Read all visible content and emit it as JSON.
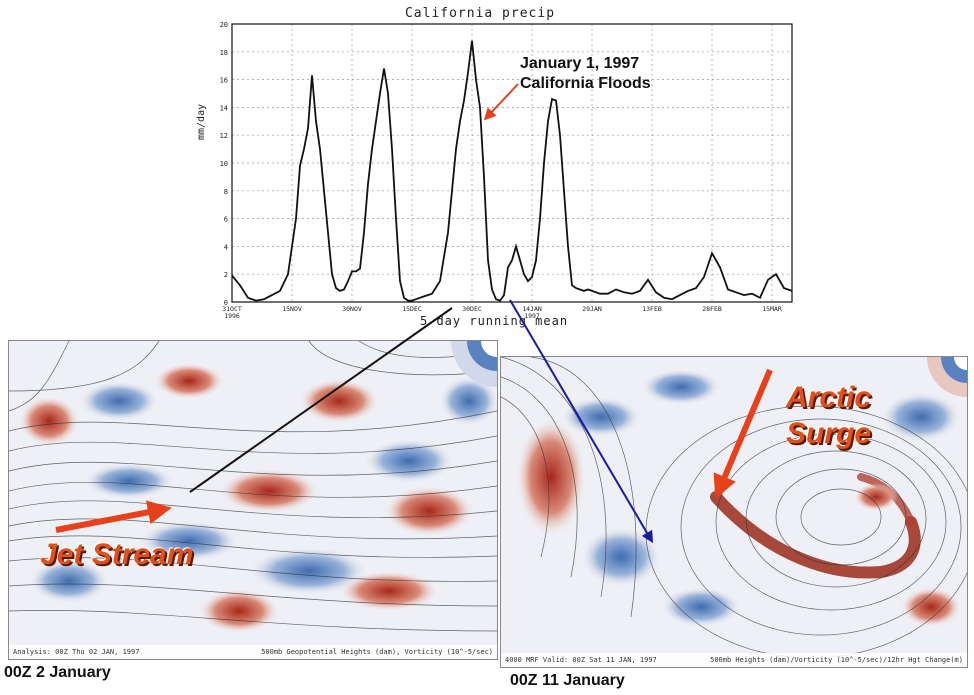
{
  "chart_data": {
    "type": "line",
    "title": "California precip",
    "ylabel": "mm/day",
    "xlabel": "5 day running mean",
    "ylim": [
      0,
      20
    ],
    "y_ticks": [
      "0",
      "2",
      "4",
      "6",
      "8",
      "10",
      "12",
      "14",
      "16",
      "18",
      "20"
    ],
    "x_ticks": [
      "31OCT 1996",
      "15NOV",
      "30NOV",
      "15DEC",
      "30DEC",
      "14JAN 1997",
      "29JAN",
      "13FEB",
      "28FEB",
      "15MAR"
    ],
    "x_tick_days": [
      0,
      15,
      30,
      45,
      60,
      75,
      90,
      105,
      120,
      135
    ],
    "x_range": [
      0,
      140
    ],
    "series": [
      {
        "x": [
          0,
          2,
          4,
          6,
          8,
          10,
          12,
          14,
          16,
          17,
          18,
          19,
          20,
          21,
          22,
          23,
          24,
          25,
          26,
          27,
          28,
          29,
          30,
          31,
          32,
          33,
          34,
          35,
          36,
          37,
          38,
          39,
          40,
          41,
          42,
          43,
          44,
          45,
          46,
          48,
          50,
          52,
          54,
          55,
          56,
          57,
          58,
          59,
          60,
          61,
          62,
          63,
          64,
          65,
          66,
          67,
          68,
          69,
          70,
          71,
          72,
          73,
          74,
          75,
          76,
          77,
          78,
          79,
          80,
          81,
          82,
          83,
          84,
          85,
          86,
          87,
          88,
          89,
          90,
          92,
          94,
          96,
          98,
          100,
          102,
          104,
          106,
          108,
          110,
          112,
          114,
          116,
          118,
          120,
          122,
          124,
          126,
          128,
          130,
          132,
          134,
          136,
          138,
          140
        ],
        "y": [
          1.9,
          1.2,
          0.3,
          0.1,
          0.2,
          0.5,
          0.8,
          2,
          6,
          9.8,
          11,
          12.5,
          16.3,
          13,
          11,
          8,
          5,
          2,
          1,
          0.8,
          0.9,
          1.5,
          2.2,
          2.2,
          2.4,
          5,
          8.5,
          11,
          13,
          15,
          16.8,
          15,
          11,
          6,
          1.5,
          0.3,
          0.1,
          0.1,
          0.2,
          0.4,
          0.6,
          1.5,
          5,
          8,
          11,
          13,
          14.5,
          16.5,
          18.8,
          16,
          14,
          9,
          3,
          0.9,
          0.2,
          0.1,
          0.5,
          2.5,
          3,
          4,
          3,
          2,
          1.5,
          1.8,
          3,
          6,
          10,
          13,
          14.6,
          14.5,
          12,
          8,
          4,
          1.2,
          1,
          0.9,
          0.8,
          0.9,
          0.8,
          0.6,
          0.6,
          0.9,
          0.7,
          0.6,
          0.8,
          1.6,
          0.7,
          0.3,
          0.2,
          0.5,
          0.8,
          1,
          1.8,
          3.5,
          2.5,
          0.9,
          0.7,
          0.5,
          0.6,
          0.3,
          1.6,
          2,
          1,
          0.8
        ]
      }
    ],
    "annotations": [
      "January 1, 1997",
      "California Floods"
    ]
  },
  "maps": {
    "left": {
      "footer_left": "Analysis: 00Z Thu 02 JAN, 1997",
      "footer_right": "500mb Geopotential Heights (dam), Vorticity (10^-5/sec)",
      "label": "Jet Stream",
      "caption": "00Z 2 January"
    },
    "right": {
      "footer_left": "4000 MRF Valid: 00Z Sat 11 JAN, 1997",
      "footer_right": "500mb Heights (dam)/Vorticity (10^-5/sec)/12hr Hgt Change(m)",
      "label_line1": "Arctic",
      "label_line2": "Surge",
      "caption": "00Z 11 January"
    }
  },
  "colors": {
    "arrow_red": "#e8401a",
    "arrow_black": "#111111",
    "arrow_blue": "#1a1aa8",
    "vort_red": "#b03a2a",
    "vort_blue": "#4a76b8"
  }
}
